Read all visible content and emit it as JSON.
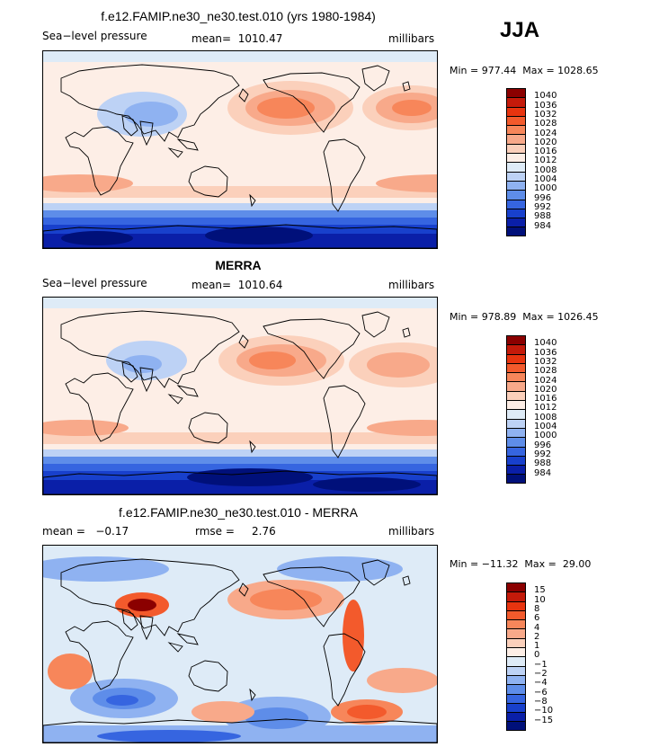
{
  "season": "JJA",
  "panels": [
    {
      "title": "f.e12.FAMIP.ne30_ne30.test.010 (yrs 1980-1984)",
      "left_label": "Sea−level pressure",
      "center_label": "mean=  1010.47",
      "right_label": "millibars",
      "minmax": "Min = 977.44  Max = 1028.65"
    },
    {
      "title": "MERRA",
      "left_label": "Sea−level pressure",
      "center_label": "mean=  1010.64",
      "right_label": "millibars",
      "minmax": "Min = 978.89  Max = 1026.45"
    },
    {
      "title": "f.e12.FAMIP.ne30_ne30.test.010 - MERRA",
      "left_label": "mean =   −0.17",
      "center_label": "rmse =     2.76",
      "right_label": "millibars",
      "minmax": "Min = −11.32  Max =  29.00"
    }
  ],
  "legend_abs": {
    "labels": [
      "1040",
      "1036",
      "1032",
      "1028",
      "1024",
      "1020",
      "1016",
      "1012",
      "1008",
      "1004",
      "1000",
      "996",
      "992",
      "988",
      "984"
    ],
    "colors": [
      "#8b0000",
      "#c41a0a",
      "#e8340f",
      "#f35a2c",
      "#f7865a",
      "#f8a98a",
      "#fbd0bb",
      "#fdeee6",
      "#deebf7",
      "#bdd2f5",
      "#8fb2f1",
      "#5e8de9",
      "#3665e0",
      "#1840cc",
      "#0a1fa8",
      "#00107a"
    ]
  },
  "legend_diff": {
    "labels": [
      "15",
      "10",
      "8",
      "6",
      "4",
      "2",
      "1",
      "0",
      "−1",
      "−2",
      "−4",
      "−6",
      "−8",
      "−10",
      "−15"
    ],
    "colors": [
      "#8b0000",
      "#c41a0a",
      "#e8340f",
      "#f35a2c",
      "#f7865a",
      "#f8a98a",
      "#fbd0bb",
      "#fdeee6",
      "#deebf7",
      "#bdd2f5",
      "#8fb2f1",
      "#5e8de9",
      "#3665e0",
      "#1840cc",
      "#0a1fa8",
      "#00107a"
    ]
  },
  "chart_data": [
    {
      "type": "heatmap",
      "title": "f.e12.FAMIP.ne30_ne30.test.010 (yrs 1980-1984)",
      "variable": "Sea-level pressure",
      "units": "millibars",
      "mean": 1010.47,
      "min": 977.44,
      "max": 1028.65,
      "contour_levels": [
        984,
        988,
        992,
        996,
        1000,
        1004,
        1008,
        1012,
        1016,
        1020,
        1024,
        1028,
        1032,
        1036,
        1040
      ]
    },
    {
      "type": "heatmap",
      "title": "MERRA",
      "variable": "Sea-level pressure",
      "units": "millibars",
      "mean": 1010.64,
      "min": 978.89,
      "max": 1026.45,
      "contour_levels": [
        984,
        988,
        992,
        996,
        1000,
        1004,
        1008,
        1012,
        1016,
        1020,
        1024,
        1028,
        1032,
        1036,
        1040
      ]
    },
    {
      "type": "heatmap",
      "title": "f.e12.FAMIP.ne30_ne30.test.010 - MERRA",
      "units": "millibars",
      "mean": -0.17,
      "rmse": 2.76,
      "min": -11.32,
      "max": 29.0,
      "contour_levels": [
        -15,
        -10,
        -8,
        -6,
        -4,
        -2,
        -1,
        0,
        1,
        2,
        4,
        6,
        8,
        10,
        15
      ]
    }
  ]
}
